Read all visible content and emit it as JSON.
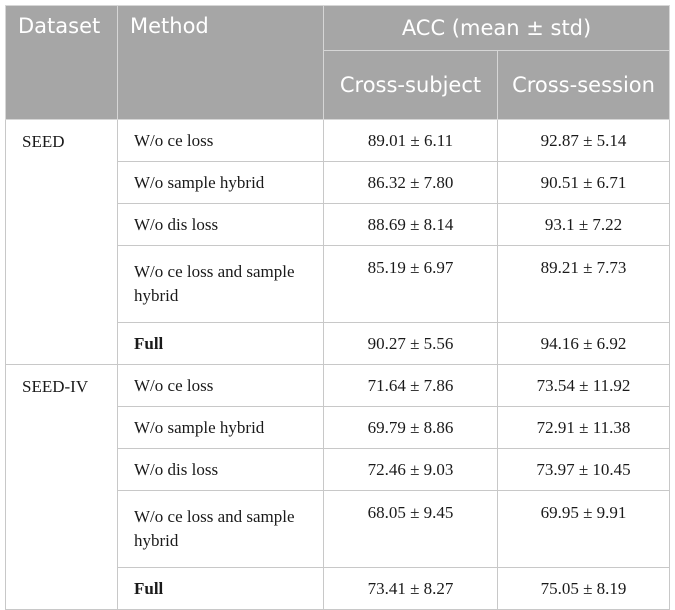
{
  "header": {
    "dataset": "Dataset",
    "method": "Method",
    "acc": "ACC (mean ± std)",
    "cross_subject": "Cross-subject",
    "cross_session": "Cross-session"
  },
  "groups": [
    {
      "dataset": "SEED",
      "rows": [
        {
          "method": "W/o ce loss",
          "cross_subject": "89.01 ± 6.11",
          "cross_session": "92.87 ± 5.14"
        },
        {
          "method": "W/o sample hybrid",
          "cross_subject": "86.32 ± 7.80",
          "cross_session": "90.51 ± 6.71"
        },
        {
          "method": "W/o dis loss",
          "cross_subject": "88.69 ± 8.14",
          "cross_session": "93.1 ± 7.22"
        },
        {
          "method": "W/o ce loss and sample hybrid",
          "cross_subject": "85.19 ± 6.97",
          "cross_session": "89.21 ± 7.73"
        },
        {
          "method": "Full",
          "cross_subject": "90.27 ± 5.56",
          "cross_session": "94.16 ± 6.92"
        }
      ]
    },
    {
      "dataset": "SEED-IV",
      "rows": [
        {
          "method": "W/o ce loss",
          "cross_subject": "71.64 ± 7.86",
          "cross_session": "73.54 ± 11.92"
        },
        {
          "method": "W/o sample hybrid",
          "cross_subject": "69.79 ± 8.86",
          "cross_session": "72.91 ± 11.38"
        },
        {
          "method": "W/o dis loss",
          "cross_subject": "72.46 ± 9.03",
          "cross_session": "73.97 ± 10.45"
        },
        {
          "method": "W/o ce loss and sample hybrid",
          "cross_subject": "68.05 ± 9.45",
          "cross_session": "69.95 ± 9.91"
        },
        {
          "method": "Full",
          "cross_subject": "73.41 ± 8.27",
          "cross_session": "75.05 ± 8.19"
        }
      ]
    }
  ]
}
